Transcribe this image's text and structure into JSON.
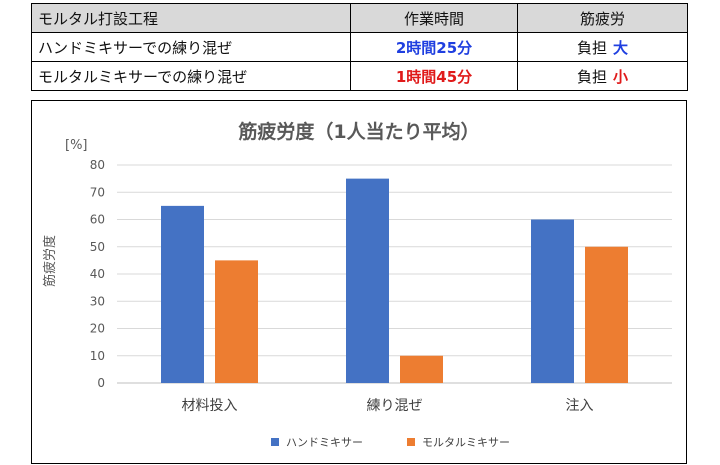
{
  "table": {
    "headers": [
      "モルタル打設工程",
      "作業時間",
      "筋疲労"
    ],
    "rows": [
      {
        "process": "ハンドミキサーでの練り混ぜ",
        "time": "2時間25分",
        "time_color": "#1f3fe0",
        "fatigue_label": "負担",
        "fatigue_level": "大",
        "fatigue_color": "#1f3fe0"
      },
      {
        "process": "モルタルミキサーでの練り混ぜ",
        "time": "1時間45分",
        "time_color": "#e01a1a",
        "fatigue_label": "負担",
        "fatigue_level": "小",
        "fatigue_color": "#e01a1a"
      }
    ]
  },
  "chart_data": {
    "type": "bar",
    "title": "筋疲労度（1人当たり平均）",
    "unit_label": "[%]",
    "ylabel": "筋疲労度",
    "xlabel": "",
    "ylim": [
      0,
      80
    ],
    "yticks": [
      0,
      10,
      20,
      30,
      40,
      50,
      60,
      70,
      80
    ],
    "grid": true,
    "legend_position": "bottom",
    "categories": [
      "材料投入",
      "練り混ぜ",
      "注入"
    ],
    "series": [
      {
        "name": "ハンドミキサー",
        "color": "#4472c4",
        "values": [
          65,
          75,
          60
        ]
      },
      {
        "name": "モルタルミキサー",
        "color": "#ed7d31",
        "values": [
          45,
          10,
          50
        ]
      }
    ]
  }
}
